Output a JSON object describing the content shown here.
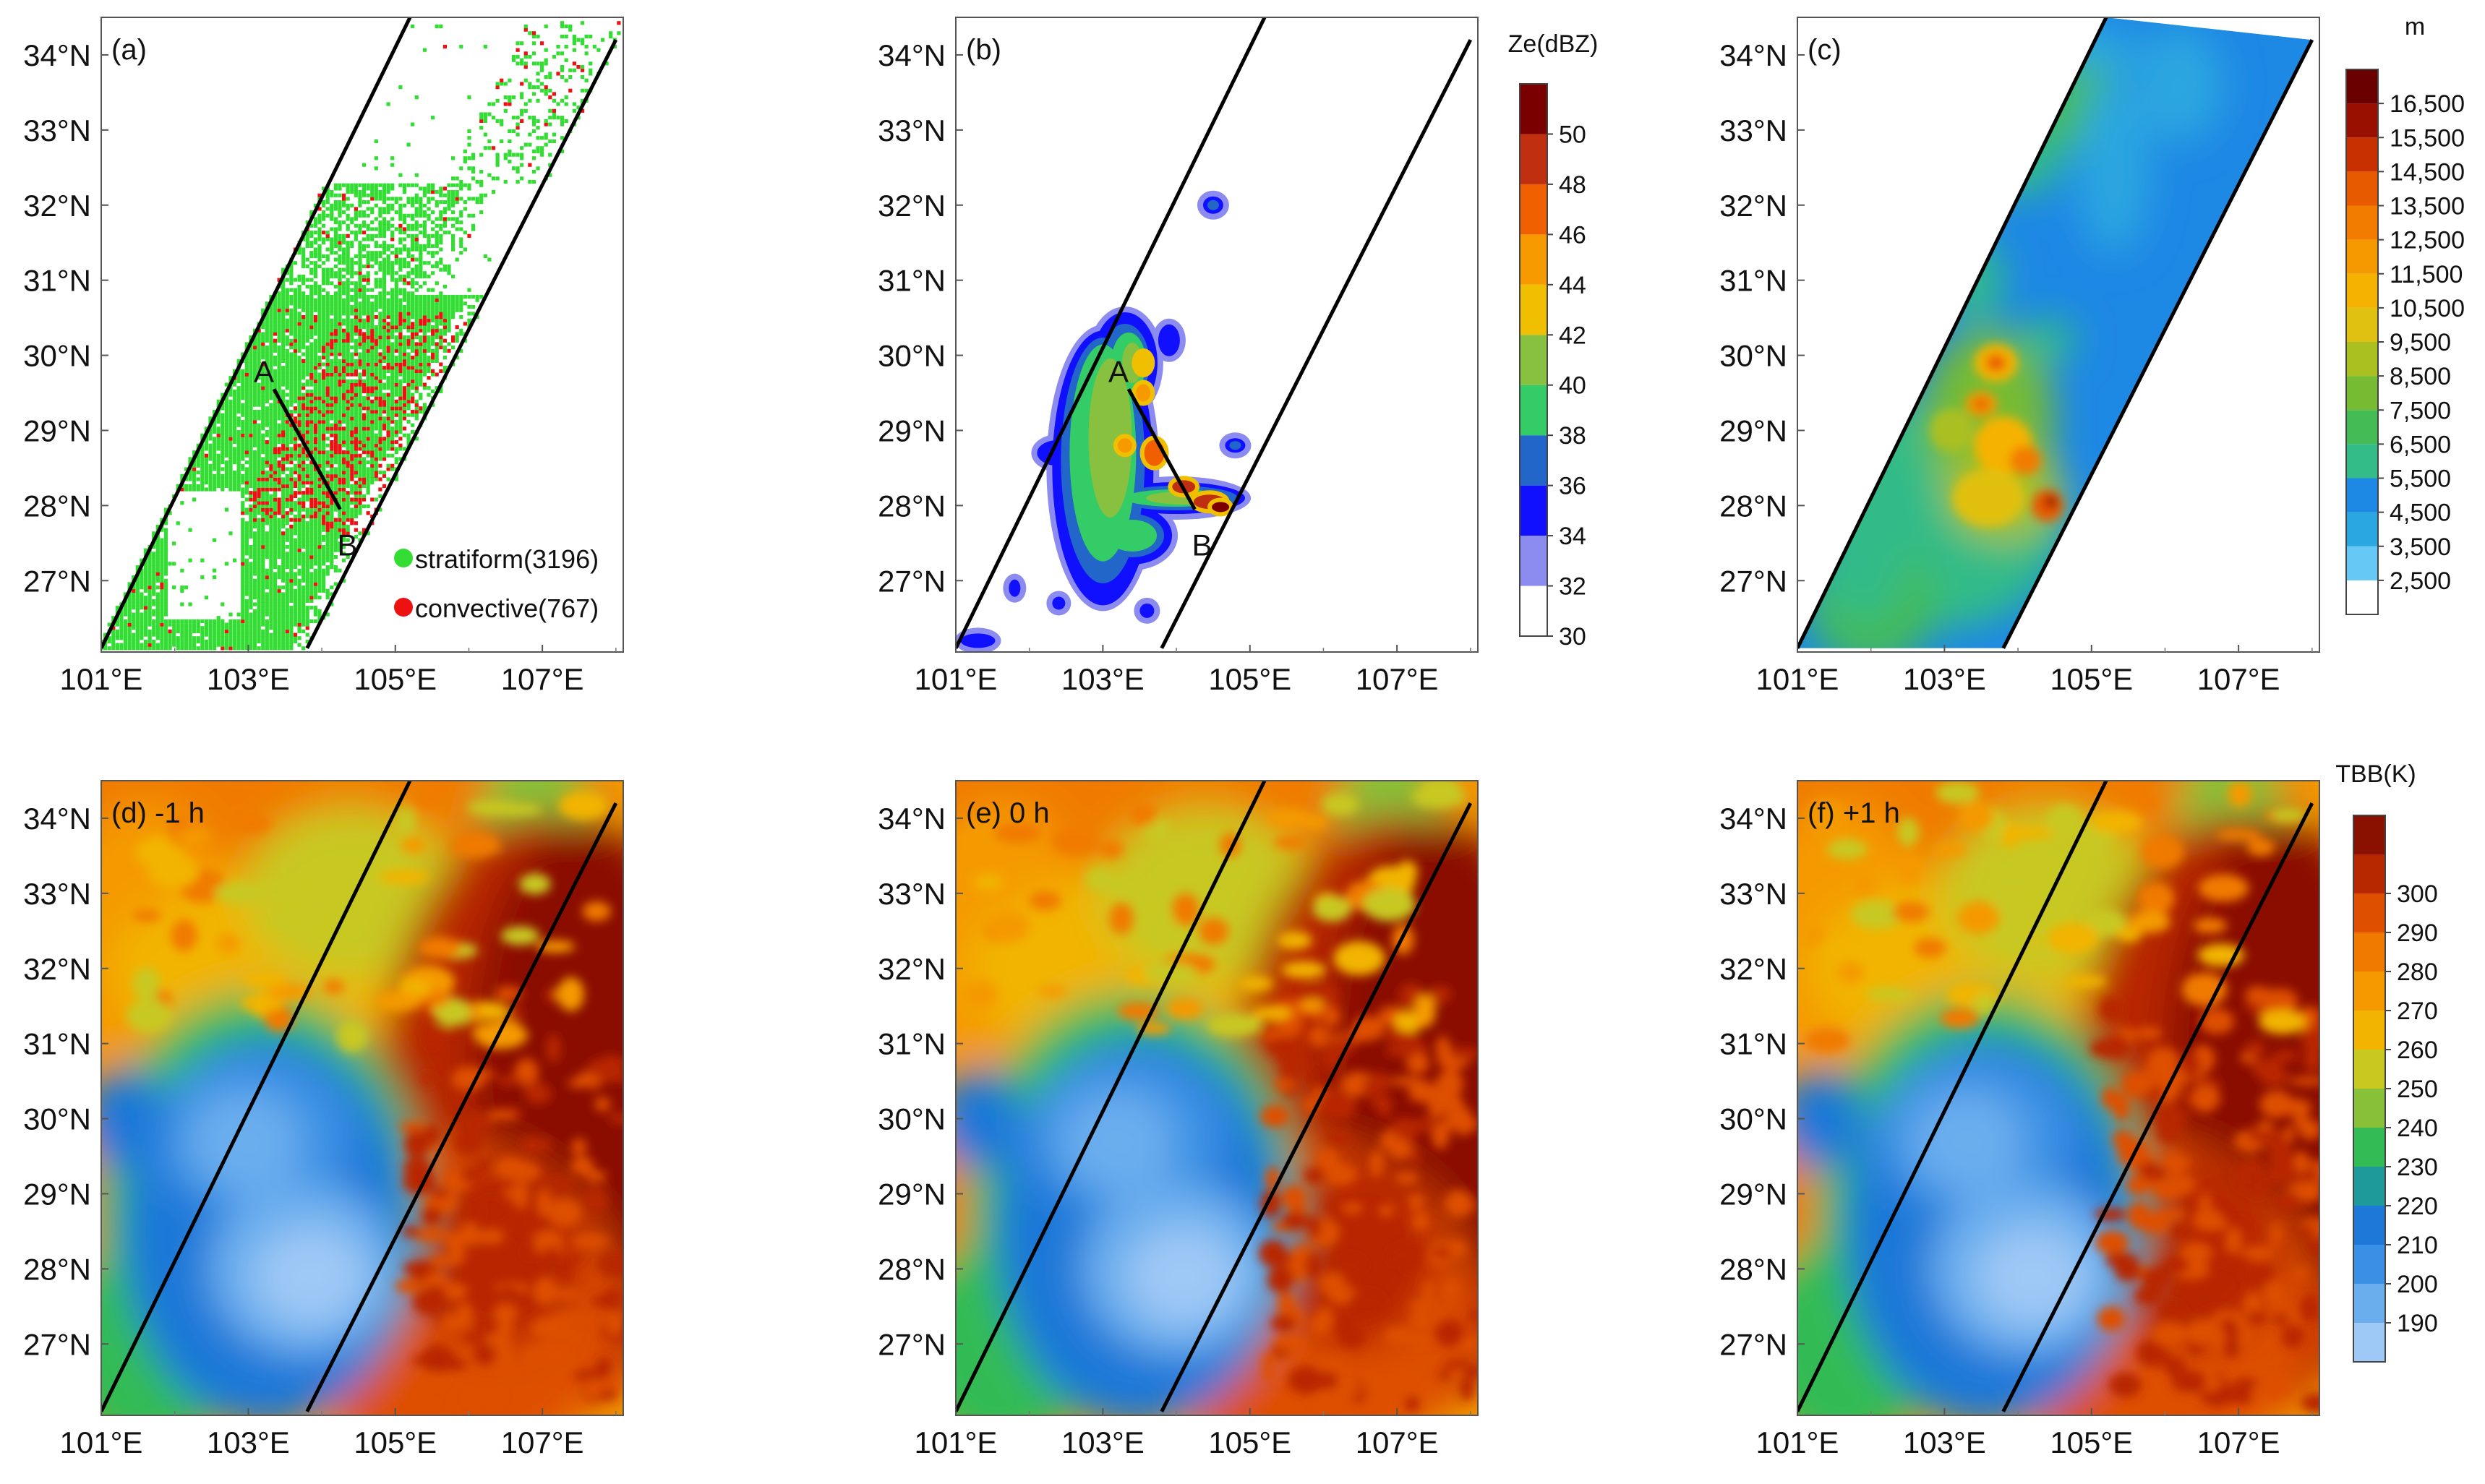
{
  "chart_data": [
    {
      "type": "scatter",
      "panel_label": "(a)",
      "x_ticks": [
        "101°E",
        "103°E",
        "105°E",
        "107°E"
      ],
      "y_ticks": [
        "34°N",
        "33°N",
        "32°N",
        "31°N",
        "30°N",
        "29°N",
        "28°N",
        "27°N"
      ],
      "xlim": [
        101,
        108.1
      ],
      "ylim": [
        26.05,
        34.5
      ],
      "series": [
        {
          "name": "stratiform(3196)",
          "color": "#33dd33"
        },
        {
          "name": "convective(767)",
          "color": "#ee1111"
        }
      ],
      "cross_section": {
        "A": [
          103.35,
          29.55
        ],
        "B": [
          104.25,
          27.95
        ],
        "labels": [
          "A",
          "B"
        ]
      },
      "swath": {
        "west_edge": [
          [
            101.0,
            26.1
          ],
          [
            105.2,
            34.5
          ]
        ],
        "east_edge": [
          [
            103.8,
            26.1
          ],
          [
            108.0,
            34.2
          ]
        ]
      }
    },
    {
      "type": "heatmap",
      "panel_label": "(b)",
      "x_ticks": [
        "101°E",
        "103°E",
        "105°E",
        "107°E"
      ],
      "y_ticks": [
        "34°N",
        "33°N",
        "32°N",
        "31°N",
        "30°N",
        "29°N",
        "28°N",
        "27°N"
      ],
      "colorbar": {
        "title": "Ze(dBZ)",
        "levels": [
          30,
          32,
          34,
          36,
          38,
          40,
          42,
          44,
          46,
          48,
          50
        ],
        "colors": [
          "#ffffff",
          "#8c8cf0",
          "#1010ff",
          "#2166c8",
          "#33cc66",
          "#88c040",
          "#f0c000",
          "#f79a00",
          "#f06000",
          "#c03010",
          "#7a0000"
        ]
      },
      "cross_section": {
        "A": [
          103.35,
          29.55
        ],
        "B": [
          104.25,
          27.95
        ],
        "labels": [
          "A",
          "B"
        ]
      }
    },
    {
      "type": "heatmap",
      "panel_label": "(c)",
      "x_ticks": [
        "101°E",
        "103°E",
        "105°E",
        "107°E"
      ],
      "y_ticks": [
        "34°N",
        "33°N",
        "32°N",
        "31°N",
        "30°N",
        "29°N",
        "28°N",
        "27°N"
      ],
      "colorbar": {
        "title": "m",
        "levels": [
          "2,500",
          "3,500",
          "4,500",
          "5,500",
          "6,500",
          "7,500",
          "8,500",
          "9,500",
          "10,500",
          "11,500",
          "12,500",
          "13,500",
          "14,500",
          "15,500",
          "16,500"
        ],
        "colors": [
          "#ffffff",
          "#66c8f5",
          "#2aa6e0",
          "#1e88e5",
          "#33bb88",
          "#44bb55",
          "#77bb33",
          "#aac020",
          "#e0c010",
          "#f6b200",
          "#f49a00",
          "#f27c00",
          "#e85a00",
          "#c83000",
          "#9a1000",
          "#6a0000"
        ]
      }
    },
    {
      "type": "heatmap",
      "panel_label": "(d) -1 h",
      "x_ticks": [
        "101°E",
        "103°E",
        "105°E",
        "107°E"
      ],
      "y_ticks": [
        "34°N",
        "33°N",
        "32°N",
        "31°N",
        "30°N",
        "29°N",
        "28°N",
        "27°N"
      ]
    },
    {
      "type": "heatmap",
      "panel_label": "(e) 0 h",
      "x_ticks": [
        "101°E",
        "103°E",
        "105°E",
        "107°E"
      ],
      "y_ticks": [
        "34°N",
        "33°N",
        "32°N",
        "31°N",
        "30°N",
        "29°N",
        "28°N",
        "27°N"
      ]
    },
    {
      "type": "heatmap",
      "panel_label": "(f) +1 h",
      "x_ticks": [
        "101°E",
        "103°E",
        "105°E",
        "107°E"
      ],
      "y_ticks": [
        "34°N",
        "33°N",
        "32°N",
        "31°N",
        "30°N",
        "29°N",
        "28°N",
        "27°N"
      ],
      "colorbar": {
        "title": "TBB(K)",
        "levels": [
          190,
          200,
          210,
          220,
          230,
          240,
          250,
          260,
          270,
          280,
          290,
          300
        ],
        "colors": [
          "#9ec8f5",
          "#6aaeee",
          "#3a90e4",
          "#1e78d8",
          "#1f9a9a",
          "#33bb55",
          "#88c038",
          "#c8c820",
          "#f2b400",
          "#f49a00",
          "#f07a00",
          "#de5000",
          "#b82800",
          "#8a1000"
        ]
      }
    }
  ]
}
